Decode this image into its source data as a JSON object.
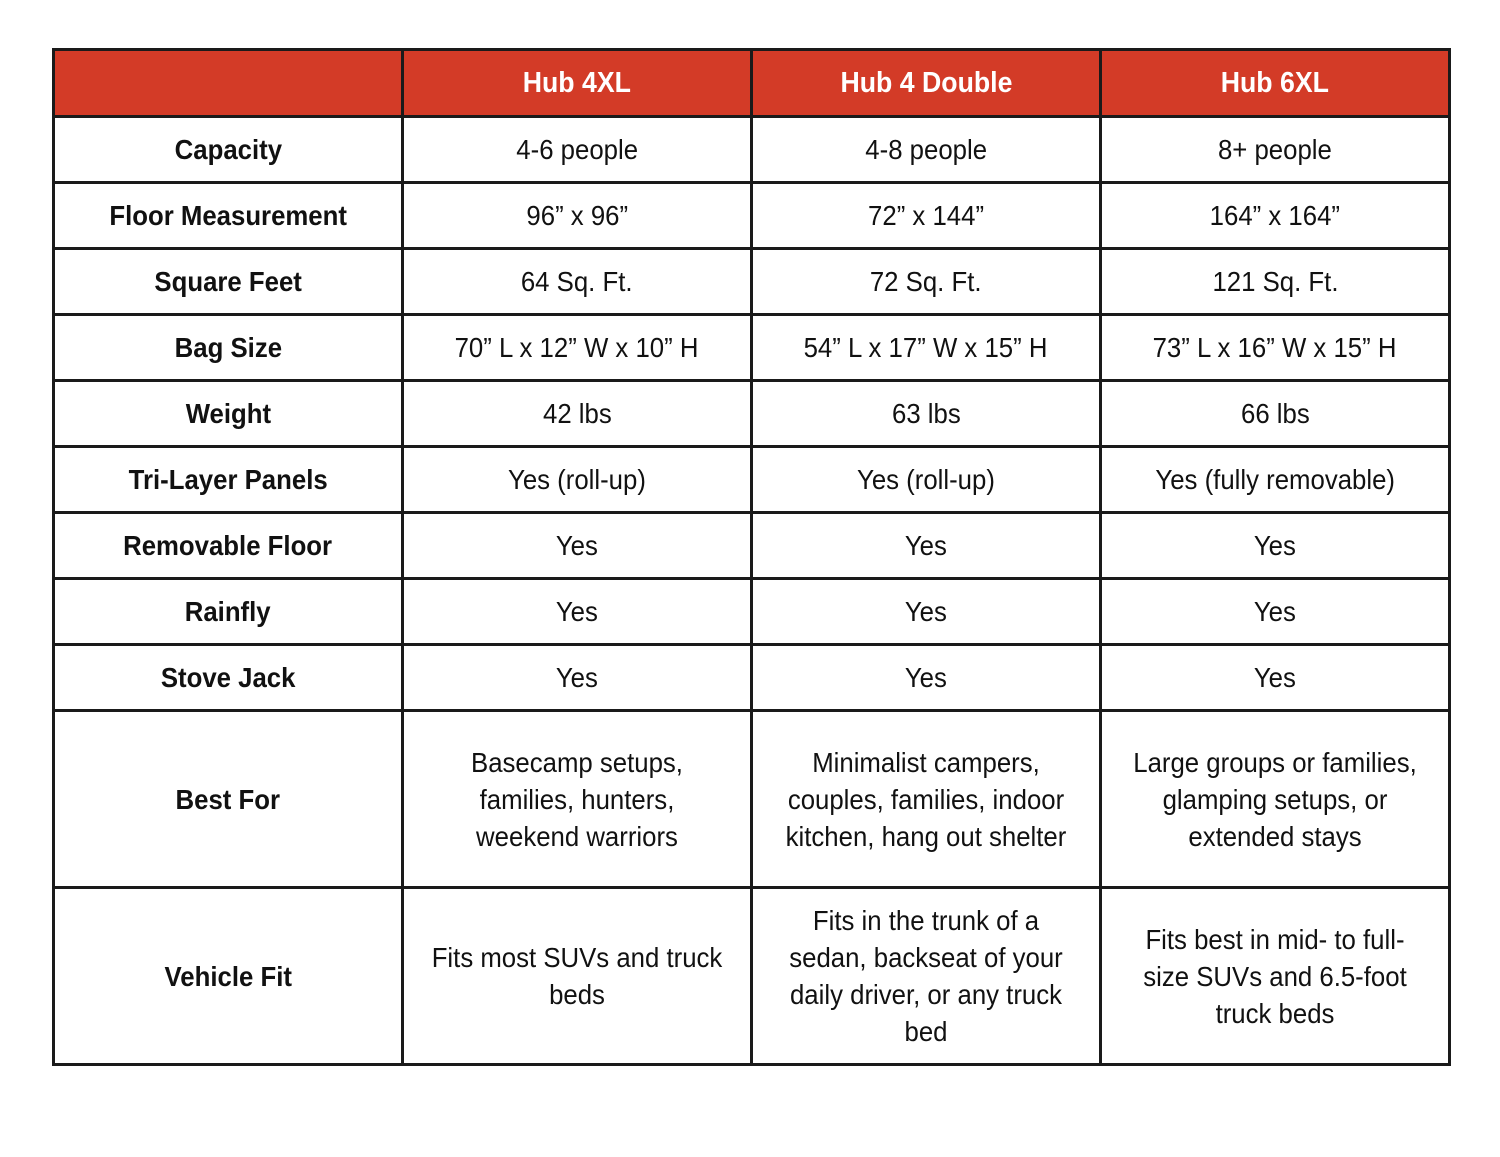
{
  "colors": {
    "header_bg": "#d33b27",
    "header_text": "#ffffff",
    "border": "#1a1a1a"
  },
  "columns": [
    "",
    "Hub 4XL",
    "Hub 4 Double",
    "Hub 6XL"
  ],
  "rows": [
    {
      "label": "Capacity",
      "values": [
        "4-6 people",
        "4-8 people",
        "8+ people"
      ]
    },
    {
      "label": "Floor Measurement",
      "values": [
        "96” x 96”",
        "72” x 144”",
        "164” x 164”"
      ]
    },
    {
      "label": "Square Feet",
      "values": [
        "64 Sq. Ft.",
        "72 Sq. Ft.",
        "121 Sq. Ft."
      ]
    },
    {
      "label": "Bag Size",
      "values": [
        "70” L  x 12” W x 10” H",
        "54” L x 17” W x 15” H",
        "73” L x 16” W x 15” H"
      ]
    },
    {
      "label": "Weight",
      "values": [
        "42 lbs",
        "63 lbs",
        "66 lbs"
      ]
    },
    {
      "label": "Tri-Layer Panels",
      "values": [
        "Yes (roll-up)",
        "Yes (roll-up)",
        "Yes (fully removable)"
      ]
    },
    {
      "label": "Removable Floor",
      "values": [
        "Yes",
        "Yes",
        "Yes"
      ]
    },
    {
      "label": "Rainfly",
      "values": [
        "Yes",
        "Yes",
        "Yes"
      ]
    },
    {
      "label": "Stove Jack",
      "values": [
        "Yes",
        "Yes",
        "Yes"
      ]
    },
    {
      "label": "Best For",
      "values": [
        "Basecamp setups, families, hunters, weekend warriors",
        "Minimalist campers, couples, families, indoor kitchen, hang out shelter",
        "Large groups or families, glamping setups, or extended stays"
      ]
    },
    {
      "label": "Vehicle Fit",
      "values": [
        "Fits most SUVs and truck beds",
        "Fits in the trunk of a sedan, backseat of your daily driver, or any truck bed",
        "Fits best in mid- to full-size SUVs and 6.5-foot truck beds"
      ]
    }
  ]
}
